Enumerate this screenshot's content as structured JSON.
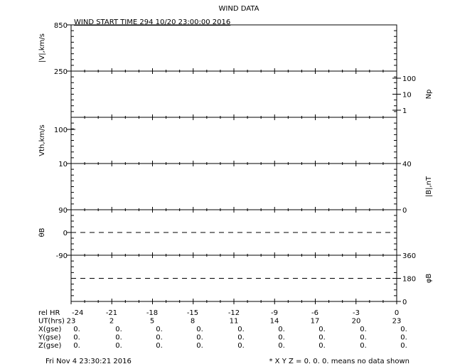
{
  "chart_data": {
    "type": "line",
    "title": "WIND DATA",
    "subtitle": "WIND START TIME 294 10/20 23:00:00 2016",
    "x": {
      "rel_hr": [
        -24,
        -21,
        -18,
        -15,
        -12,
        -9,
        -6,
        -3,
        0
      ],
      "xlim": [
        -24,
        0
      ]
    },
    "panels": [
      {
        "ylabel": "|V|,km/s",
        "side": "left",
        "ticks": [
          "850",
          "250"
        ],
        "ylim": [
          250,
          850
        ],
        "scale": "linear",
        "values": []
      },
      {
        "ylabel": "Np",
        "side": "right",
        "ticks": [
          "100",
          "10",
          "1"
        ],
        "scale": "log",
        "values": []
      },
      {
        "ylabel": "Vth,km/s",
        "side": "left",
        "ticks": [
          "100",
          "10"
        ],
        "scale": "log",
        "values": []
      },
      {
        "ylabel": "|B|,nT",
        "side": "right",
        "ticks": [
          "40",
          "0"
        ],
        "ylim": [
          0,
          40
        ],
        "scale": "linear",
        "values": []
      },
      {
        "ylabel": "θB",
        "side": "left",
        "ticks": [
          "90",
          "0",
          "-90"
        ],
        "ylim": [
          -90,
          90
        ],
        "reference_line": 0,
        "scale": "linear",
        "values": []
      },
      {
        "ylabel": "φB",
        "side": "right",
        "ticks": [
          "360",
          "180",
          "0"
        ],
        "ylim": [
          0,
          360
        ],
        "reference_line": 180,
        "scale": "linear",
        "values": []
      }
    ],
    "table": {
      "rows": [
        {
          "label": "rel HR",
          "values": [
            "-24",
            "-21",
            "-18",
            "-15",
            "-12",
            "-9",
            "-6",
            "-3",
            "0"
          ]
        },
        {
          "label": "UT(hrs)",
          "values": [
            "23",
            "2",
            "5",
            "8",
            "11",
            "14",
            "17",
            "20",
            "23"
          ]
        },
        {
          "label": "X(gse)",
          "values": [
            "0.",
            "0.",
            "0.",
            "0.",
            "0.",
            "0.",
            "0.",
            "0.",
            "0."
          ]
        },
        {
          "label": "Y(gse)",
          "values": [
            "0.",
            "0.",
            "0.",
            "0.",
            "0.",
            "0.",
            "0.",
            "0.",
            "0."
          ]
        },
        {
          "label": "Z(gse)",
          "values": [
            "0.",
            "0.",
            "0.",
            "0.",
            "0.",
            "0.",
            "0.",
            "0.",
            "0."
          ]
        }
      ]
    }
  },
  "footer": {
    "timestamp": "Fri Nov  4 23:30:21 2016",
    "note": "* X Y Z = 0. 0. 0. means no data shown"
  }
}
